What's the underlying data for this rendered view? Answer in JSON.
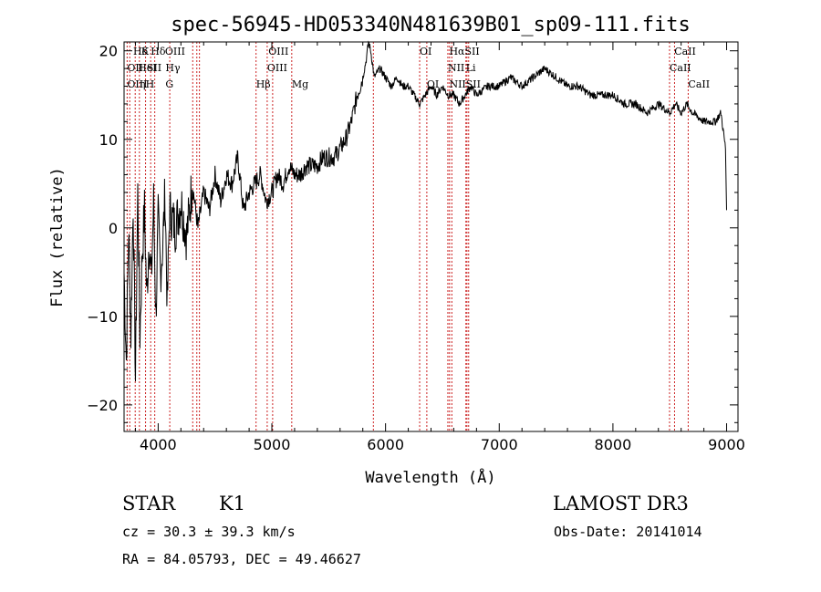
{
  "chart_data": {
    "type": "line",
    "title": "spec-56945-HD053340N481639B01_sp09-111.fits",
    "xlabel": "Wavelength (Å)",
    "ylabel": "Flux (relative)",
    "xlim": [
      3700,
      9100
    ],
    "ylim": [
      -23,
      21
    ],
    "xticks": [
      4000,
      5000,
      6000,
      7000,
      8000,
      9000
    ],
    "yticks": [
      -20,
      -10,
      0,
      10,
      20
    ],
    "series": [
      {
        "name": "flux",
        "x": [
          3700,
          3720,
          3740,
          3760,
          3780,
          3800,
          3820,
          3840,
          3860,
          3880,
          3900,
          3920,
          3940,
          3960,
          3980,
          4000,
          4020,
          4040,
          4060,
          4080,
          4100,
          4150,
          4200,
          4250,
          4300,
          4350,
          4400,
          4450,
          4500,
          4550,
          4600,
          4650,
          4700,
          4750,
          4800,
          4850,
          4900,
          4950,
          5000,
          5050,
          5100,
          5150,
          5200,
          5250,
          5300,
          5350,
          5400,
          5450,
          5500,
          5550,
          5600,
          5650,
          5700,
          5750,
          5800,
          5830,
          5850,
          5870,
          5900,
          5950,
          6000,
          6050,
          6100,
          6150,
          6200,
          6250,
          6300,
          6350,
          6400,
          6450,
          6500,
          6550,
          6600,
          6650,
          6700,
          6750,
          6800,
          6900,
          7000,
          7100,
          7200,
          7300,
          7400,
          7500,
          7600,
          7700,
          7800,
          7900,
          8000,
          8100,
          8200,
          8300,
          8400,
          8500,
          8550,
          8600,
          8650,
          8700,
          8800,
          8900,
          8950,
          8990,
          9000
        ],
        "y": [
          -5,
          -15,
          0,
          -12,
          3,
          -17,
          4,
          -12,
          -3,
          2,
          -8,
          -1,
          -6,
          3,
          -10,
          1,
          -5,
          -2,
          4,
          -9,
          2,
          0,
          3,
          -1,
          5,
          0,
          4,
          2,
          6,
          3,
          6,
          5,
          8,
          2,
          4,
          5,
          6,
          3,
          4,
          6,
          5,
          7,
          6,
          6,
          7,
          7,
          7,
          8,
          8,
          8,
          9,
          10,
          12,
          15,
          17,
          19,
          21,
          20,
          17,
          18,
          17,
          16,
          17,
          16,
          16,
          15,
          14,
          15,
          16,
          15,
          16,
          15,
          15,
          14,
          15,
          16,
          15,
          16,
          16,
          17,
          16,
          17,
          18,
          17,
          16,
          16,
          15,
          15,
          15,
          14,
          14,
          13,
          14,
          13,
          14,
          13,
          14,
          13,
          12,
          12,
          13,
          9,
          2
        ]
      }
    ],
    "spectral_lines": [
      {
        "label": "Hδ",
        "x": 3780,
        "row": 0
      },
      {
        "label": "K",
        "x": 3850,
        "row": 0
      },
      {
        "label": "Hδ",
        "x": 3935,
        "row": 0
      },
      {
        "label": "OIII",
        "x": 4060,
        "row": 0
      },
      {
        "label": "OIII",
        "x": 4970,
        "row": 0
      },
      {
        "label": "OI",
        "x": 6300,
        "row": 0
      },
      {
        "label": "HαSII",
        "x": 6560,
        "row": 0
      },
      {
        "label": "CaII",
        "x": 8540,
        "row": 0
      },
      {
        "label": "OII",
        "x": 3727,
        "row": 1
      },
      {
        "label": "HeI",
        "x": 3822,
        "row": 1
      },
      {
        "label": "SII",
        "x": 3900,
        "row": 1
      },
      {
        "label": "Hγ",
        "x": 4064,
        "row": 1
      },
      {
        "label": "OIII",
        "x": 4959,
        "row": 1
      },
      {
        "label": "NII",
        "x": 6548,
        "row": 1
      },
      {
        "label": "Li",
        "x": 6707,
        "row": 1
      },
      {
        "label": "CaII",
        "x": 8498,
        "row": 1
      },
      {
        "label": "OIII",
        "x": 3727,
        "row": 2
      },
      {
        "label": "η",
        "x": 3835,
        "row": 2
      },
      {
        "label": "H",
        "x": 3890,
        "row": 2
      },
      {
        "label": "G",
        "x": 4064,
        "row": 2
      },
      {
        "label": "Hβ",
        "x": 4861,
        "row": 2
      },
      {
        "label": "Mg",
        "x": 5175,
        "row": 2
      },
      {
        "label": "OI",
        "x": 6363,
        "row": 2
      },
      {
        "label": "NIISII",
        "x": 6560,
        "row": 2
      },
      {
        "label": "CaII",
        "x": 8662,
        "row": 2
      }
    ],
    "marker_lines_x": [
      3727,
      3750,
      3798,
      3835,
      3889,
      3934,
      3970,
      4102,
      4304,
      4340,
      4363,
      4861,
      4959,
      5007,
      5175,
      5893,
      6300,
      6363,
      6548,
      6563,
      6583,
      6707,
      6716,
      6731,
      8498,
      8542,
      8662
    ],
    "marker_color": "#cc2222"
  },
  "info": {
    "class": "STAR",
    "subclass": "K1",
    "survey": "LAMOST DR3",
    "cz": "cz = 30.3 ± 39.3 km/s",
    "obs_date": "Obs-Date: 20141014",
    "radec": "RA =  84.05793, DEC =  49.46627"
  }
}
